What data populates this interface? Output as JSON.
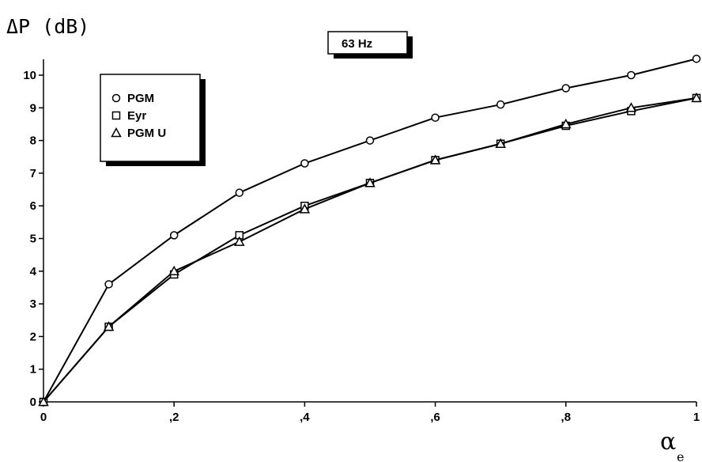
{
  "chart_data": {
    "type": "line",
    "title": "63 Hz",
    "ylabel": "ΔP (dB)",
    "xlabel": "α",
    "xlabel_sub": "e",
    "xlim": [
      0,
      1
    ],
    "ylim": [
      0,
      10
    ],
    "x": [
      0,
      0.1,
      0.2,
      0.3,
      0.4,
      0.5,
      0.6,
      0.7,
      0.8,
      0.9,
      1
    ],
    "x_tick_labels": [
      "0",
      ",2",
      ",4",
      ",6",
      ",8",
      "1"
    ],
    "x_tick_values": [
      0,
      0.2,
      0.4,
      0.6,
      0.8,
      1
    ],
    "y_tick_labels": [
      "0",
      "1",
      "2",
      "3",
      "4",
      "5",
      "6",
      "7",
      "8",
      "9",
      "10"
    ],
    "grid": false,
    "legend_position": "top-left",
    "series": [
      {
        "name": "PGM",
        "marker": "circle",
        "values": [
          0,
          3.6,
          5.1,
          6.4,
          7.3,
          8.0,
          8.7,
          9.1,
          9.6,
          10.0,
          10.5
        ]
      },
      {
        "name": "Eyr",
        "marker": "square",
        "values": [
          0,
          2.3,
          3.9,
          5.1,
          6.0,
          6.7,
          7.4,
          7.9,
          8.45,
          8.9,
          9.3
        ]
      },
      {
        "name": "PGM U",
        "marker": "triangle",
        "values": [
          0,
          2.3,
          4.0,
          4.9,
          5.9,
          6.7,
          7.4,
          7.9,
          8.5,
          9.0,
          9.3
        ]
      }
    ]
  }
}
